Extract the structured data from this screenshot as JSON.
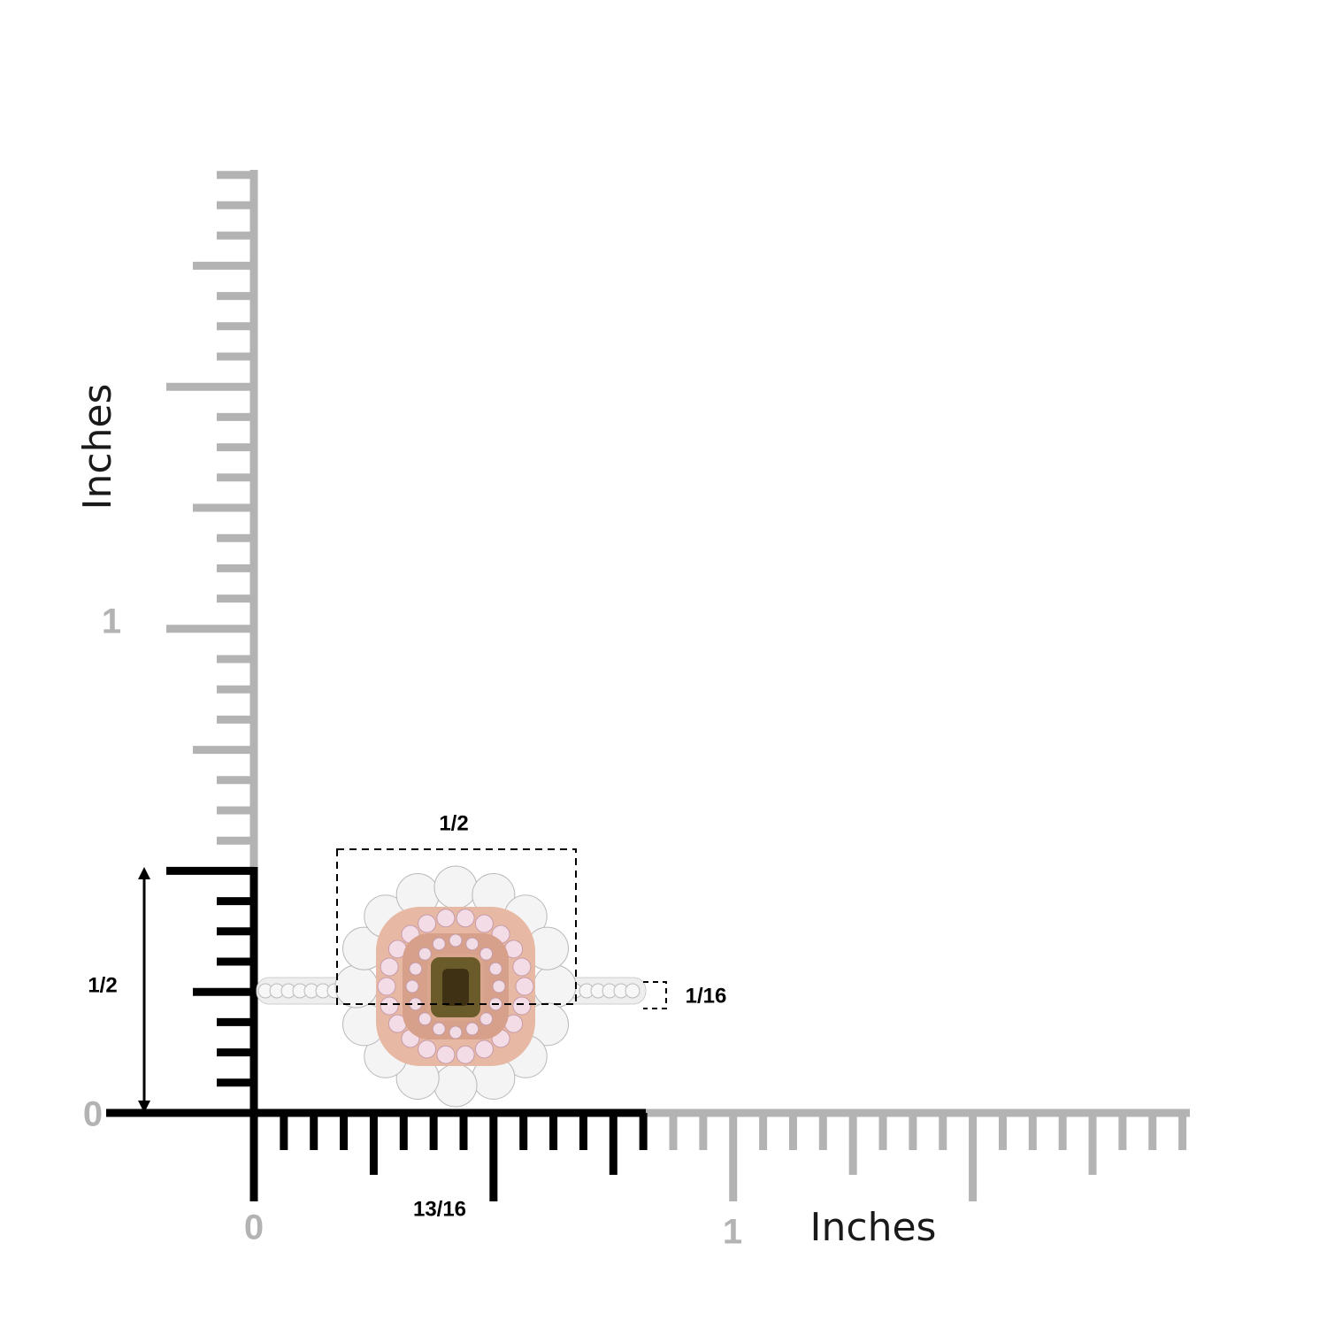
{
  "y_axis": {
    "title": "Inches",
    "labels": [
      "0",
      "1"
    ]
  },
  "x_axis": {
    "title": "Inches",
    "labels": [
      "0",
      "1"
    ]
  },
  "dimensions": {
    "width": "1/2",
    "height": "1/2",
    "band": "1/16",
    "length": "13/16"
  }
}
